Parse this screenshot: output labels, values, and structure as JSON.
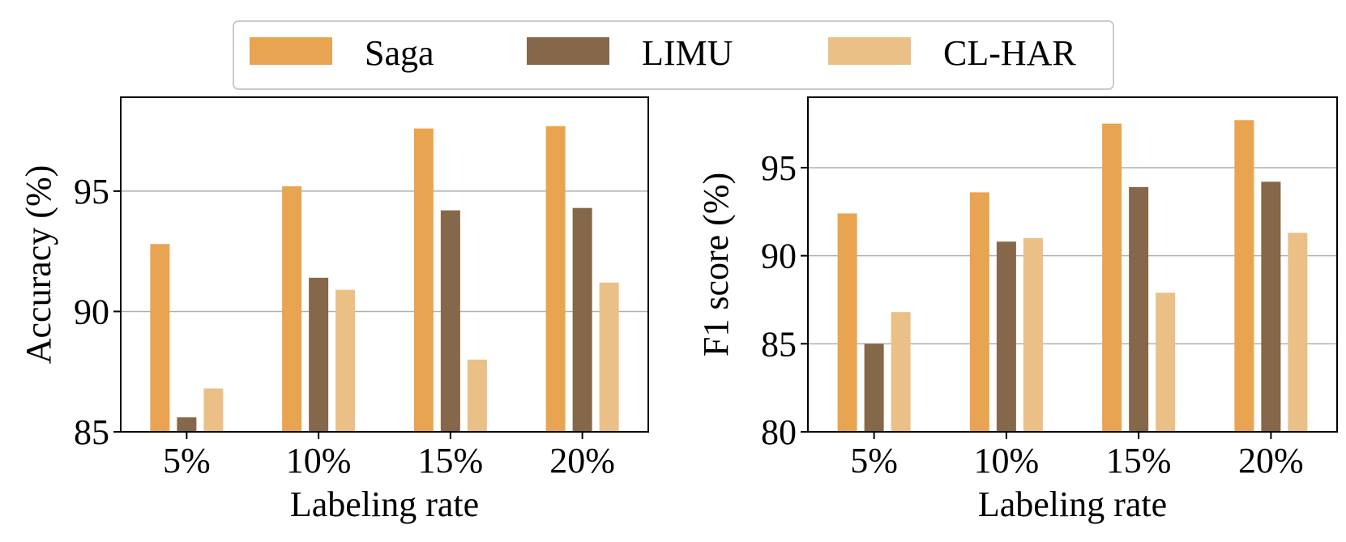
{
  "legend": {
    "items": [
      {
        "name": "Saga",
        "color": "#E8A451"
      },
      {
        "name": "LIMU",
        "color": "#85684A"
      },
      {
        "name": "CL-HAR",
        "color": "#EAC087"
      }
    ]
  },
  "chart_data": [
    {
      "type": "bar",
      "title": "",
      "xlabel": "Labeling rate",
      "ylabel": "Accuracy (%)",
      "categories": [
        "5%",
        "10%",
        "15%",
        "20%"
      ],
      "ylim": [
        85,
        98.9
      ],
      "yticks": [
        85,
        90,
        95
      ],
      "grid": true,
      "series": [
        {
          "name": "Saga",
          "color": "#E8A451",
          "values": [
            92.8,
            95.2,
            97.6,
            97.7
          ]
        },
        {
          "name": "LIMU",
          "color": "#85684A",
          "values": [
            85.6,
            91.4,
            94.2,
            94.3
          ]
        },
        {
          "name": "CL-HAR",
          "color": "#EAC087",
          "values": [
            86.8,
            90.9,
            88.0,
            91.2
          ]
        }
      ]
    },
    {
      "type": "bar",
      "title": "",
      "xlabel": "Labeling rate",
      "ylabel": "F1 score (%)",
      "categories": [
        "5%",
        "10%",
        "15%",
        "20%"
      ],
      "ylim": [
        80,
        99
      ],
      "yticks": [
        80,
        85,
        90,
        95
      ],
      "grid": true,
      "series": [
        {
          "name": "Saga",
          "color": "#E8A451",
          "values": [
            92.4,
            93.6,
            97.5,
            97.7
          ]
        },
        {
          "name": "LIMU",
          "color": "#85684A",
          "values": [
            85.0,
            90.8,
            93.9,
            94.2
          ]
        },
        {
          "name": "CL-HAR",
          "color": "#EAC087",
          "values": [
            86.8,
            91.0,
            87.9,
            91.3
          ]
        }
      ]
    }
  ]
}
